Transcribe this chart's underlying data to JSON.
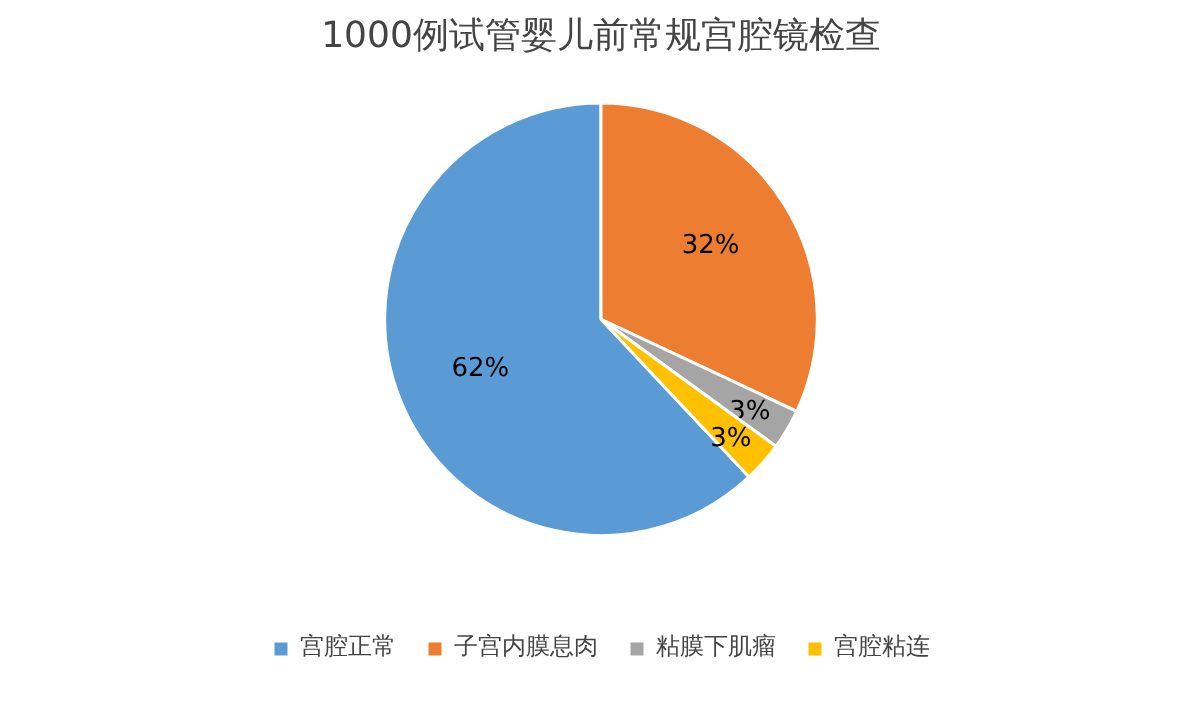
{
  "chart_data": {
    "type": "pie",
    "title": "1000例试管婴儿前常规宫腔镜检查",
    "categories": [
      "宫腔正常",
      "子宫内膜息肉",
      "粘膜下肌瘤",
      "宫腔粘连"
    ],
    "values": [
      62,
      32,
      3,
      3
    ],
    "colors": [
      "#5b9bd5",
      "#ed7d31",
      "#a5a5a5",
      "#ffc000"
    ],
    "value_labels": [
      "62%",
      "32%",
      "3%",
      "3%"
    ],
    "legend": "bottom"
  }
}
